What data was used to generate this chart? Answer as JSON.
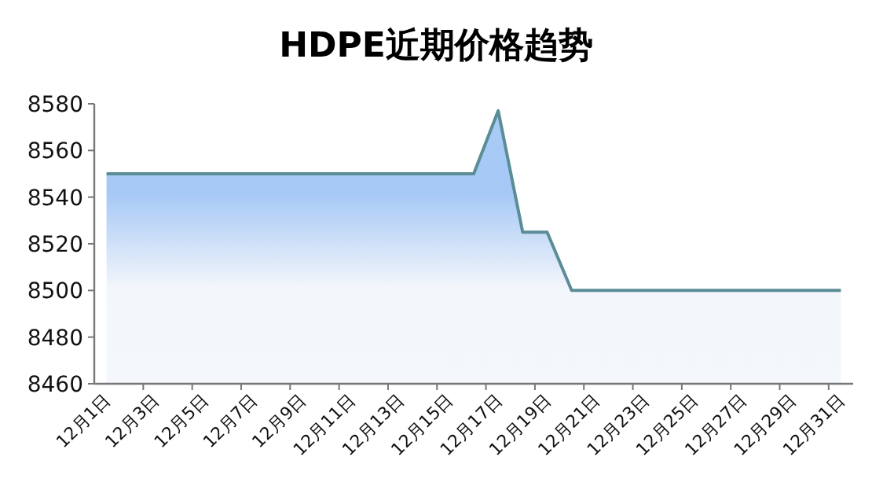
{
  "chart_data": {
    "type": "area",
    "title": "HDPE近期价格趋势",
    "categories": [
      "12月1日",
      null,
      "12月3日",
      null,
      "12月5日",
      null,
      "12月7日",
      null,
      "12月9日",
      null,
      "12月11日",
      null,
      "12月13日",
      null,
      "12月15日",
      null,
      "12月17日",
      null,
      "12月19日",
      null,
      "12月21日",
      null,
      "12月23日",
      null,
      "12月25日",
      null,
      "12月27日",
      null,
      "12月29日",
      null,
      "12月31日"
    ],
    "series": [
      {
        "color": "#5a8d96",
        "values": [
          8550,
          8550,
          8550,
          8550,
          8550,
          8550,
          8550,
          8550,
          8550,
          8550,
          8550,
          8550,
          8550,
          8550,
          8550,
          8550,
          8577,
          8525,
          8525,
          8500,
          8500,
          8500,
          8500,
          8500,
          8500,
          8500,
          8500,
          8500,
          8500,
          8500,
          8500
        ]
      }
    ],
    "ylim": [
      8460,
      8580
    ],
    "yticks": [
      8460,
      8480,
      8500,
      8520,
      8540,
      8560,
      8580
    ],
    "grid": false
  }
}
